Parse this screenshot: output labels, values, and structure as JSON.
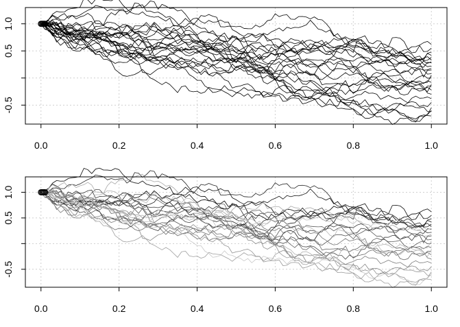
{
  "chart_data": [
    {
      "type": "line",
      "title": "",
      "xlabel": "",
      "ylabel": "",
      "xlim": [
        -0.04,
        1.04
      ],
      "ylim": [
        -0.85,
        1.3
      ],
      "x_ticks": [
        0.0,
        0.2,
        0.4,
        0.6,
        0.8,
        1.0
      ],
      "x_tick_labels": [
        "0.0",
        "0.2",
        "0.4",
        "0.6",
        "0.8",
        "1.0"
      ],
      "y_ticks": [
        -0.5,
        0.0,
        0.5,
        1.0
      ],
      "y_tick_labels": [
        "-0.5",
        "",
        "0.5",
        "1.0"
      ],
      "grid": true,
      "start_point": [
        0.0,
        1.0
      ],
      "series_count": 25,
      "n_steps": 100,
      "color_mode": "black",
      "series_color": "#000000",
      "end_values": [
        0.62,
        0.55,
        0.48,
        0.42,
        0.38,
        0.33,
        0.28,
        0.22,
        0.15,
        0.08,
        0.0,
        -0.08,
        -0.15,
        -0.22,
        -0.3,
        -0.38,
        -0.45,
        -0.55,
        -0.62,
        -0.7,
        0.18,
        0.05,
        -0.12,
        0.3,
        -0.6
      ],
      "min_path_trough": [
        0.57,
        -0.55
      ]
    },
    {
      "type": "line",
      "title": "",
      "xlabel": "",
      "ylabel": "",
      "xlim": [
        -0.04,
        1.04
      ],
      "ylim": [
        -0.85,
        1.3
      ],
      "x_ticks": [
        0.0,
        0.2,
        0.4,
        0.6,
        0.8,
        1.0
      ],
      "x_tick_labels": [
        "0.0",
        "0.2",
        "0.4",
        "0.6",
        "0.8",
        "1.0"
      ],
      "y_ticks": [
        -0.5,
        0.0,
        0.5,
        1.0
      ],
      "y_tick_labels": [
        "-0.5",
        "",
        "0.5",
        "1.0"
      ],
      "grid": true,
      "start_point": [
        0.0,
        1.0
      ],
      "series_count": 25,
      "n_steps": 100,
      "color_mode": "gray-gradient",
      "gray_range": [
        "#000000",
        "#c8c8c8"
      ],
      "end_values": [
        0.62,
        0.55,
        0.48,
        0.42,
        0.38,
        0.33,
        0.28,
        0.22,
        0.15,
        0.08,
        0.0,
        -0.08,
        -0.15,
        -0.22,
        -0.3,
        -0.38,
        -0.45,
        -0.55,
        -0.62,
        -0.7,
        0.18,
        0.05,
        -0.12,
        0.3,
        -0.6
      ],
      "min_path_trough": [
        0.57,
        -0.55
      ]
    }
  ]
}
